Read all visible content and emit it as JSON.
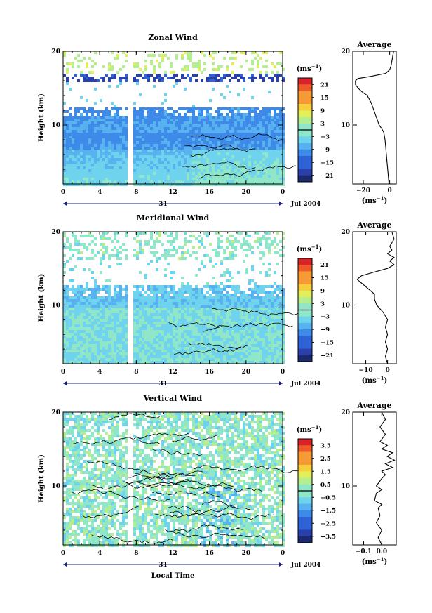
{
  "date_label": "Jul 2004",
  "day_label": "31",
  "xlabel_bottom": "Local Time",
  "chart_data": [
    {
      "type": "heatmap",
      "title": "Zonal Wind",
      "ylabel": "Height (km)",
      "xlabel": "Local Time",
      "x_ticks": [
        "0",
        "4",
        "8",
        "12",
        "16",
        "20",
        "0"
      ],
      "y_ticks": [
        "10",
        "20"
      ],
      "ylim": [
        2,
        20
      ],
      "xlim": [
        0,
        24
      ],
      "colorbar": {
        "unit": "(ms",
        "unit_sup": "−1",
        "unit_close": ")",
        "ticks": [
          "21",
          "15",
          "9",
          "3",
          "−3",
          "−9",
          "−15",
          "−21"
        ],
        "range": [
          -24,
          24
        ]
      },
      "profile": {
        "title": "Average",
        "xlabel": "(ms",
        "xlabel_sup": "−1",
        "xlabel_close": ")",
        "x_ticks": [
          "−20",
          "0"
        ],
        "y_ticks": [
          "10",
          "20"
        ],
        "xlim": [
          -28,
          5
        ],
        "points": [
          [
            -0.5,
            2.0
          ],
          [
            -1,
            3.0
          ],
          [
            -1.5,
            4.0
          ],
          [
            -2,
            5.0
          ],
          [
            -2.5,
            6.0
          ],
          [
            -3,
            7.0
          ],
          [
            -3.5,
            8.0
          ],
          [
            -4.5,
            9.0
          ],
          [
            -6,
            9.5
          ],
          [
            -8,
            10.0
          ],
          [
            -10,
            11.0
          ],
          [
            -12,
            12.0
          ],
          [
            -14,
            13.0
          ],
          [
            -17,
            14.0
          ],
          [
            -21,
            14.5
          ],
          [
            -24,
            15.0
          ],
          [
            -26,
            15.5
          ],
          [
            -26,
            16.0
          ],
          [
            -24,
            16.3
          ],
          [
            -14,
            16.6
          ],
          [
            -3,
            17.0
          ],
          [
            0,
            17.5
          ],
          [
            1,
            18.0
          ],
          [
            2,
            19.0
          ],
          [
            3,
            20.0
          ]
        ]
      }
    },
    {
      "type": "heatmap",
      "title": "Meridional Wind",
      "ylabel": "Height (km)",
      "xlabel": "Local Time",
      "x_ticks": [
        "0",
        "4",
        "8",
        "12",
        "16",
        "20",
        "0"
      ],
      "y_ticks": [
        "10",
        "20"
      ],
      "ylim": [
        2,
        20
      ],
      "xlim": [
        0,
        24
      ],
      "colorbar": {
        "unit": "(ms",
        "unit_sup": "−1",
        "unit_close": ")",
        "ticks": [
          "21",
          "15",
          "9",
          "3",
          "−3",
          "−9",
          "−15",
          "−21"
        ],
        "range": [
          -24,
          24
        ]
      },
      "profile": {
        "title": "Average",
        "xlabel": "(ms",
        "xlabel_sup": "−1",
        "xlabel_close": ")",
        "x_ticks": [
          "−10",
          "0"
        ],
        "y_ticks": [
          "10",
          "20"
        ],
        "xlim": [
          -16,
          4
        ],
        "points": [
          [
            0,
            2.0
          ],
          [
            -1,
            3.0
          ],
          [
            0,
            4.0
          ],
          [
            -1,
            5.0
          ],
          [
            0,
            6.0
          ],
          [
            -1,
            7.0
          ],
          [
            0,
            8.0
          ],
          [
            -2,
            9.0
          ],
          [
            -5,
            10.0
          ],
          [
            -6,
            10.8
          ],
          [
            -6,
            11.5
          ],
          [
            -8,
            12.0
          ],
          [
            -10,
            12.5
          ],
          [
            -12,
            13.0
          ],
          [
            -14,
            13.5
          ],
          [
            -12,
            14.0
          ],
          [
            -6,
            14.5
          ],
          [
            0,
            15.0
          ],
          [
            3,
            15.5
          ],
          [
            1,
            16.0
          ],
          [
            3,
            16.5
          ],
          [
            0,
            17.0
          ],
          [
            2,
            17.5
          ],
          [
            1,
            18.0
          ],
          [
            3,
            19.0
          ],
          [
            2,
            20.0
          ]
        ]
      }
    },
    {
      "type": "heatmap",
      "title": "Vertical Wind",
      "ylabel": "Height (km)",
      "xlabel": "Local Time",
      "x_ticks": [
        "0",
        "4",
        "8",
        "12",
        "16",
        "20",
        "0"
      ],
      "y_ticks": [
        "10",
        "20"
      ],
      "ylim": [
        2,
        20
      ],
      "xlim": [
        0,
        24
      ],
      "colorbar": {
        "unit": "(ms",
        "unit_sup": "−1",
        "unit_close": ")",
        "ticks": [
          "3.5",
          "2.5",
          "1.5",
          "0.5",
          "−0.5",
          "−1.5",
          "−2.5",
          "−3.5"
        ],
        "range": [
          -4,
          4
        ]
      },
      "profile": {
        "title": "Average",
        "xlabel": "(ms",
        "xlabel_sup": "−1",
        "xlabel_close": ")",
        "x_ticks": [
          "−0.1",
          "0.0"
        ],
        "y_ticks": [
          "10",
          "20"
        ],
        "xlim": [
          -0.16,
          0.08
        ],
        "points": [
          [
            0.0,
            2.0
          ],
          [
            -0.02,
            3.0
          ],
          [
            0.0,
            4.0
          ],
          [
            -0.03,
            5.0
          ],
          [
            -0.01,
            6.0
          ],
          [
            -0.02,
            7.0
          ],
          [
            0.0,
            7.5
          ],
          [
            -0.04,
            8.0
          ],
          [
            -0.03,
            9.0
          ],
          [
            0.0,
            9.5
          ],
          [
            -0.03,
            10.0
          ],
          [
            0.0,
            11.0
          ],
          [
            0.02,
            11.5
          ],
          [
            0.0,
            12.0
          ],
          [
            0.06,
            12.5
          ],
          [
            0.02,
            13.0
          ],
          [
            0.07,
            13.5
          ],
          [
            0.03,
            14.0
          ],
          [
            0.06,
            14.5
          ],
          [
            0.0,
            15.0
          ],
          [
            0.03,
            15.5
          ],
          [
            -0.01,
            16.0
          ],
          [
            0.02,
            17.0
          ],
          [
            -0.01,
            18.0
          ],
          [
            0.02,
            19.0
          ],
          [
            0.0,
            20.0
          ]
        ]
      }
    }
  ]
}
